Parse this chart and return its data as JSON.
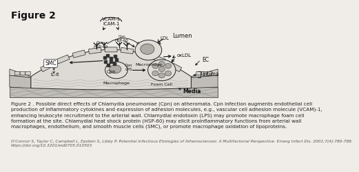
{
  "title": "Figure 2",
  "title_fontsize": 10,
  "title_fontweight": "bold",
  "bg_color": "#f0ede8",
  "caption_main": "Figure 2 . Possible direct effects of Chlamydia pneumoniae (Cpn) on atheromata. Cpn infection augments endothelial cell\nproduction of inflammatory cytokines and expression of adhesion molecules, e.g., vascular cell adhesion molecule (VCAM)-1,\nenhancing leukocyte recruitment to the arterial wall. Chlamydial endotoxin (LPS) may promote macrophage foam cell\nformation at the site. Chlamydial heat shock protein (HSP-60) may elicit proinflammatory functions from arterial wall\nmacrophages, endothelium, and smooth muscle cells (SMC), or promote macrophage oxidation of lipoproteins.",
  "caption_ref": "O'Connor S, Taylor C, Campbell L, Epstein S, Libby P. Potential Infectious Etiologies of Atherosclerosis: A Multifactorial Perspective. Emerg Infect Dis. 2001;7(4):780-788.\nhttps://doi.org/10.3201/eid0705.010503",
  "caption_fontsize": 5.2,
  "ref_fontsize": 4.2,
  "lumen_label": "Lumen",
  "ec_label": "EC",
  "intima_label": "Intima",
  "media_label": "Media",
  "smc_label": "SMC",
  "il6_label": "IL-6",
  "vcam_label": "VCAM-1\nICAM-1",
  "cpn_label": "Cpn",
  "ldl_label": "LDL",
  "oxldl_label": "oxLDL",
  "macrophage_label1": "Macrophage",
  "macrophage_label2": "Macrophage",
  "foam_label": "Foam Cell",
  "lps_label": "Cpn\nLPS",
  "cpn_hsp_label": "Cpn\nHSP-60",
  "hsp60_label": "Cpn\nHSP-60",
  "line_color": "#222222",
  "fill_media": "#c0bdb8",
  "fill_intima": "#ddd9d4",
  "fill_lumen": "#f5f5f5",
  "fill_cell": "#e0ddd8",
  "fill_nucleus": "#b0aba5"
}
